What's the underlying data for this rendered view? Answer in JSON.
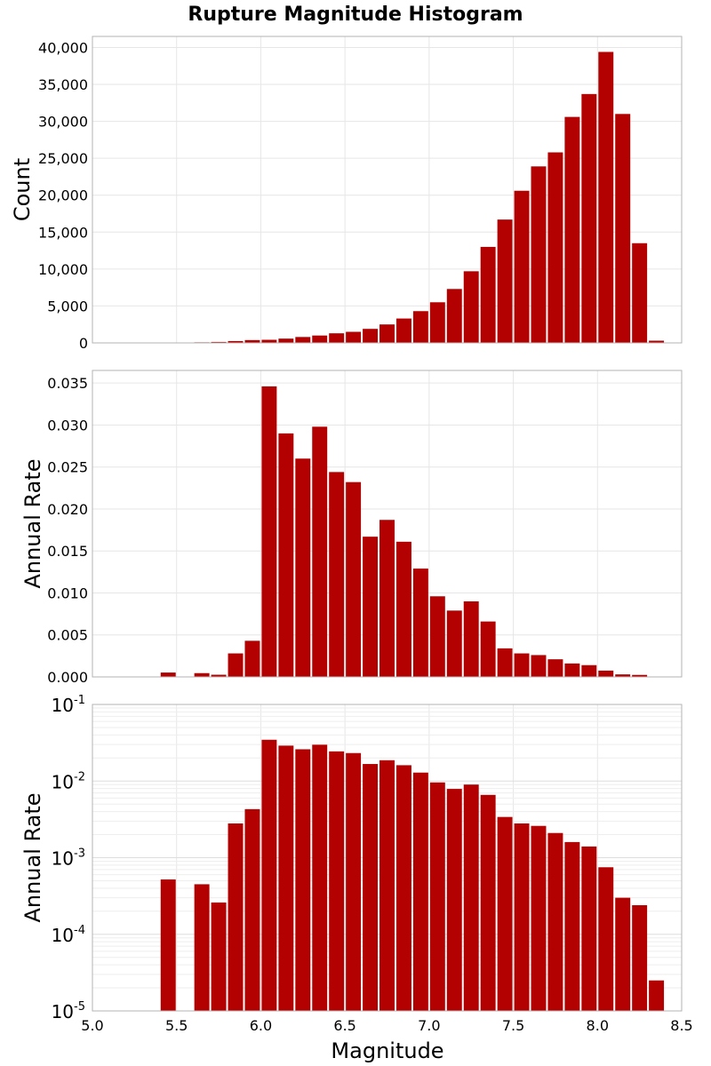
{
  "chart_data": {
    "title": "Rupture Magnitude Histogram",
    "type": "bar",
    "bin_centers": [
      5.05,
      5.15,
      5.25,
      5.35,
      5.45,
      5.55,
      5.65,
      5.75,
      5.85,
      5.95,
      6.05,
      6.15,
      6.25,
      6.35,
      6.45,
      6.55,
      6.65,
      6.75,
      6.85,
      6.95,
      7.05,
      7.15,
      7.25,
      7.35,
      7.45,
      7.55,
      7.65,
      7.75,
      7.85,
      7.95,
      8.05,
      8.15,
      8.25,
      8.35
    ],
    "bin_width": 0.1,
    "xlim": [
      5.0,
      8.5
    ],
    "xlabel": "Magnitude",
    "x_ticks": [
      "5.0",
      "5.5",
      "6.0",
      "6.5",
      "7.0",
      "7.5",
      "8.0",
      "8.5"
    ],
    "x_tick_values": [
      5.0,
      5.5,
      6.0,
      6.5,
      7.0,
      7.5,
      8.0,
      8.5
    ],
    "color": "#b30000",
    "grid": true,
    "panels": [
      {
        "id": "count",
        "ylabel": "Count",
        "scale": "linear",
        "ylim": [
          0,
          41500
        ],
        "y_ticks": [
          "0",
          "5,000",
          "10,000",
          "15,000",
          "20,000",
          "25,000",
          "30,000",
          "35,000",
          "40,000"
        ],
        "y_tick_values": [
          0,
          5000,
          10000,
          15000,
          20000,
          25000,
          30000,
          35000,
          40000
        ],
        "values": [
          0,
          0,
          0,
          10,
          50,
          60,
          80,
          130,
          250,
          380,
          420,
          580,
          800,
          1000,
          1300,
          1500,
          1900,
          2500,
          3300,
          4300,
          5500,
          7300,
          9700,
          13000,
          16700,
          20600,
          23900,
          25800,
          30600,
          33700,
          39400,
          31000,
          13500,
          300
        ]
      },
      {
        "id": "rate-linear",
        "ylabel": "Annual Rate",
        "scale": "linear",
        "ylim": [
          0,
          0.0365
        ],
        "y_ticks": [
          "0.000",
          "0.005",
          "0.010",
          "0.015",
          "0.020",
          "0.025",
          "0.030",
          "0.035"
        ],
        "y_tick_values": [
          0,
          0.005,
          0.01,
          0.015,
          0.02,
          0.025,
          0.03,
          0.035
        ],
        "values": [
          0,
          0,
          0,
          0,
          0.00052,
          0,
          0.00045,
          0.00026,
          0.0028,
          0.0043,
          0.0346,
          0.029,
          0.026,
          0.0298,
          0.0244,
          0.0232,
          0.0167,
          0.0187,
          0.0161,
          0.0129,
          0.0096,
          0.0079,
          0.009,
          0.0066,
          0.0034,
          0.0028,
          0.0026,
          0.0021,
          0.0016,
          0.0014,
          0.00075,
          0.0003,
          0.00024,
          2.5e-05
        ]
      },
      {
        "id": "rate-log",
        "ylabel": "Annual Rate",
        "scale": "log",
        "ylim": [
          1e-05,
          0.1
        ],
        "y_ticks_base": [
          "10",
          "10",
          "10",
          "10",
          "10"
        ],
        "y_ticks_exp": [
          "-5",
          "-4",
          "-3",
          "-2",
          "-1"
        ],
        "y_tick_values": [
          1e-05,
          0.0001,
          0.001,
          0.01,
          0.1
        ],
        "values": [
          0,
          0,
          0,
          0,
          0.00052,
          0,
          0.00045,
          0.00026,
          0.0028,
          0.0043,
          0.0346,
          0.029,
          0.026,
          0.0298,
          0.0244,
          0.0232,
          0.0167,
          0.0187,
          0.0161,
          0.0129,
          0.0096,
          0.0079,
          0.009,
          0.0066,
          0.0034,
          0.0028,
          0.0026,
          0.0021,
          0.0016,
          0.0014,
          0.00075,
          0.0003,
          0.00024,
          2.5e-05
        ]
      }
    ]
  }
}
